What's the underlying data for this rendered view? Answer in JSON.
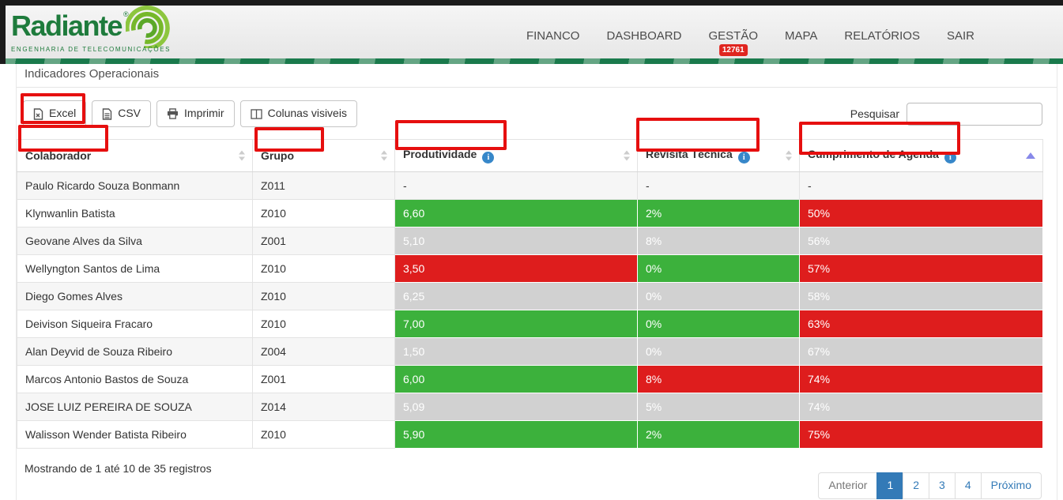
{
  "brand": {
    "name": "Radiante",
    "registered": "®",
    "tagline": "ENGENHARIA DE TELECOMUNICAÇÕES"
  },
  "nav": {
    "items": [
      {
        "label": "FINANCO"
      },
      {
        "label": "DASHBOARD"
      },
      {
        "label": "GESTÃO",
        "badge": "12761"
      },
      {
        "label": "MAPA"
      },
      {
        "label": "RELATÓRIOS"
      },
      {
        "label": "SAIR"
      }
    ]
  },
  "page": {
    "title": "Indicadores Operacionais"
  },
  "toolbar": {
    "buttons": [
      {
        "label": "Excel",
        "icon": "excel-file-icon"
      },
      {
        "label": "CSV",
        "icon": "csv-file-icon"
      },
      {
        "label": "Imprimir",
        "icon": "printer-icon"
      },
      {
        "label": "Colunas visiveis",
        "icon": "columns-icon"
      }
    ],
    "search_label": "Pesquisar",
    "search_value": ""
  },
  "table": {
    "columns": [
      {
        "label": "Colaborador",
        "info": false,
        "sort": "both"
      },
      {
        "label": "Grupo",
        "info": false,
        "sort": "both"
      },
      {
        "label": "Produtividade",
        "info": true,
        "sort": "both"
      },
      {
        "label": "Revisita Técnica",
        "info": true,
        "sort": "both"
      },
      {
        "label": "Cumprimento de Agenda",
        "info": true,
        "sort": "asc"
      }
    ],
    "rows": [
      {
        "colaborador": "Paulo Ricardo Souza Bonmann",
        "grupo": "Z011",
        "produtividade": {
          "value": "-",
          "color": null
        },
        "revisita": {
          "value": "-",
          "color": null
        },
        "agenda": {
          "value": "-",
          "color": null
        }
      },
      {
        "colaborador": "Klynwanlin Batista",
        "grupo": "Z010",
        "produtividade": {
          "value": "6,60",
          "color": "green"
        },
        "revisita": {
          "value": "2%",
          "color": "green"
        },
        "agenda": {
          "value": "50%",
          "color": "red"
        }
      },
      {
        "colaborador": "Geovane Alves da Silva",
        "grupo": "Z001",
        "produtividade": {
          "value": "5,10",
          "color": "green"
        },
        "revisita": {
          "value": "8%",
          "color": "red"
        },
        "agenda": {
          "value": "56%",
          "color": "red"
        }
      },
      {
        "colaborador": "Wellyngton Santos de Lima",
        "grupo": "Z010",
        "produtividade": {
          "value": "3,50",
          "color": "red"
        },
        "revisita": {
          "value": "0%",
          "color": "green"
        },
        "agenda": {
          "value": "57%",
          "color": "red"
        }
      },
      {
        "colaborador": "Diego Gomes Alves",
        "grupo": "Z010",
        "produtividade": {
          "value": "6,25",
          "color": "green"
        },
        "revisita": {
          "value": "0%",
          "color": "green"
        },
        "agenda": {
          "value": "58%",
          "color": "red"
        }
      },
      {
        "colaborador": "Deivison Siqueira Fracaro",
        "grupo": "Z010",
        "produtividade": {
          "value": "7,00",
          "color": "green"
        },
        "revisita": {
          "value": "0%",
          "color": "green"
        },
        "agenda": {
          "value": "63%",
          "color": "red"
        }
      },
      {
        "colaborador": "Alan Deyvid de Souza Ribeiro",
        "grupo": "Z004",
        "produtividade": {
          "value": "1,50",
          "color": "red"
        },
        "revisita": {
          "value": "0%",
          "color": "green"
        },
        "agenda": {
          "value": "67%",
          "color": "red"
        }
      },
      {
        "colaborador": "Marcos Antonio Bastos de Souza",
        "grupo": "Z001",
        "produtividade": {
          "value": "6,00",
          "color": "green"
        },
        "revisita": {
          "value": "8%",
          "color": "red"
        },
        "agenda": {
          "value": "74%",
          "color": "red"
        }
      },
      {
        "colaborador": "JOSE LUIZ PEREIRA DE SOUZA",
        "grupo": "Z014",
        "produtividade": {
          "value": "5,09",
          "color": "green"
        },
        "revisita": {
          "value": "5%",
          "color": "green"
        },
        "agenda": {
          "value": "74%",
          "color": "red"
        }
      },
      {
        "colaborador": "Walisson Wender Batista Ribeiro",
        "grupo": "Z010",
        "produtividade": {
          "value": "5,90",
          "color": "green"
        },
        "revisita": {
          "value": "2%",
          "color": "green"
        },
        "agenda": {
          "value": "75%",
          "color": "red"
        }
      }
    ]
  },
  "footer": {
    "summary": "Mostrando de 1 até 10 de 35 registros"
  },
  "pagination": {
    "prev": "Anterior",
    "pages": [
      "1",
      "2",
      "3",
      "4"
    ],
    "active": "1",
    "next": "Próximo"
  },
  "colors": {
    "positive_green": "#3cb13c",
    "negative_red": "#de1d1d",
    "info_icon_blue": "#3787c9",
    "pagination_blue": "#337ab7",
    "badge_red": "#e0251f",
    "annotation_red": "#e60f0f",
    "brand_green": "#1e7b3c",
    "brand_lime": "#76b82a"
  }
}
